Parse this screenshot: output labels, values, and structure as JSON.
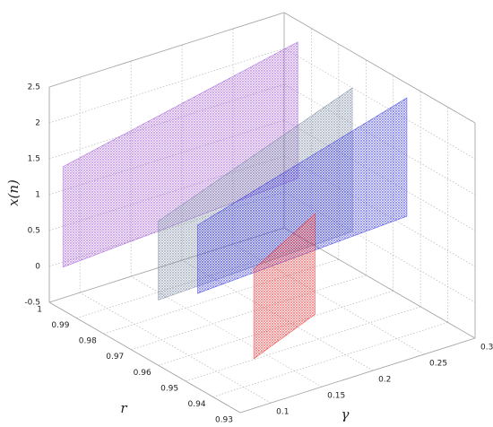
{
  "chart_data": {
    "type": "bifurcation3d",
    "xlabel": "γ",
    "ylabel": "r",
    "zlabel": "x(n)",
    "xlim": [
      0.07,
      0.3
    ],
    "xticks": [
      0.1,
      0.15,
      0.2,
      0.25,
      0.3
    ],
    "ylim": [
      0.93,
      1
    ],
    "yticks": [
      0.93,
      0.94,
      0.95,
      0.96,
      0.97,
      0.98,
      0.99,
      1
    ],
    "zlim": [
      -0.5,
      2.5
    ],
    "zticks": [
      -0.5,
      0,
      0.5,
      1,
      1.5,
      2,
      2.5
    ],
    "grid": true,
    "series": [
      {
        "color": "#9b4fd6",
        "r": 0.995,
        "gamma": [
          0.07,
          0.3
        ],
        "low": [
          0.1,
          0.3
        ],
        "high": [
          1.5,
          2.2
        ]
      },
      {
        "color": "#6e7f9a",
        "r": 0.975,
        "gamma": [
          0.11,
          0.3
        ],
        "low": [
          -0.1,
          0.0
        ],
        "high": [
          1.0,
          2.0
        ]
      },
      {
        "color": "#2a2ae0",
        "r": 0.955,
        "gamma": [
          0.095,
          0.3
        ],
        "low": [
          0.5,
          0.65
        ],
        "high": [
          1.45,
          2.3
        ]
      },
      {
        "color": "#e82020",
        "r": 0.94,
        "gamma": [
          0.11,
          0.17
        ],
        "low": [
          -0.15,
          0.2
        ],
        "high": [
          1.1,
          1.6
        ]
      }
    ]
  }
}
